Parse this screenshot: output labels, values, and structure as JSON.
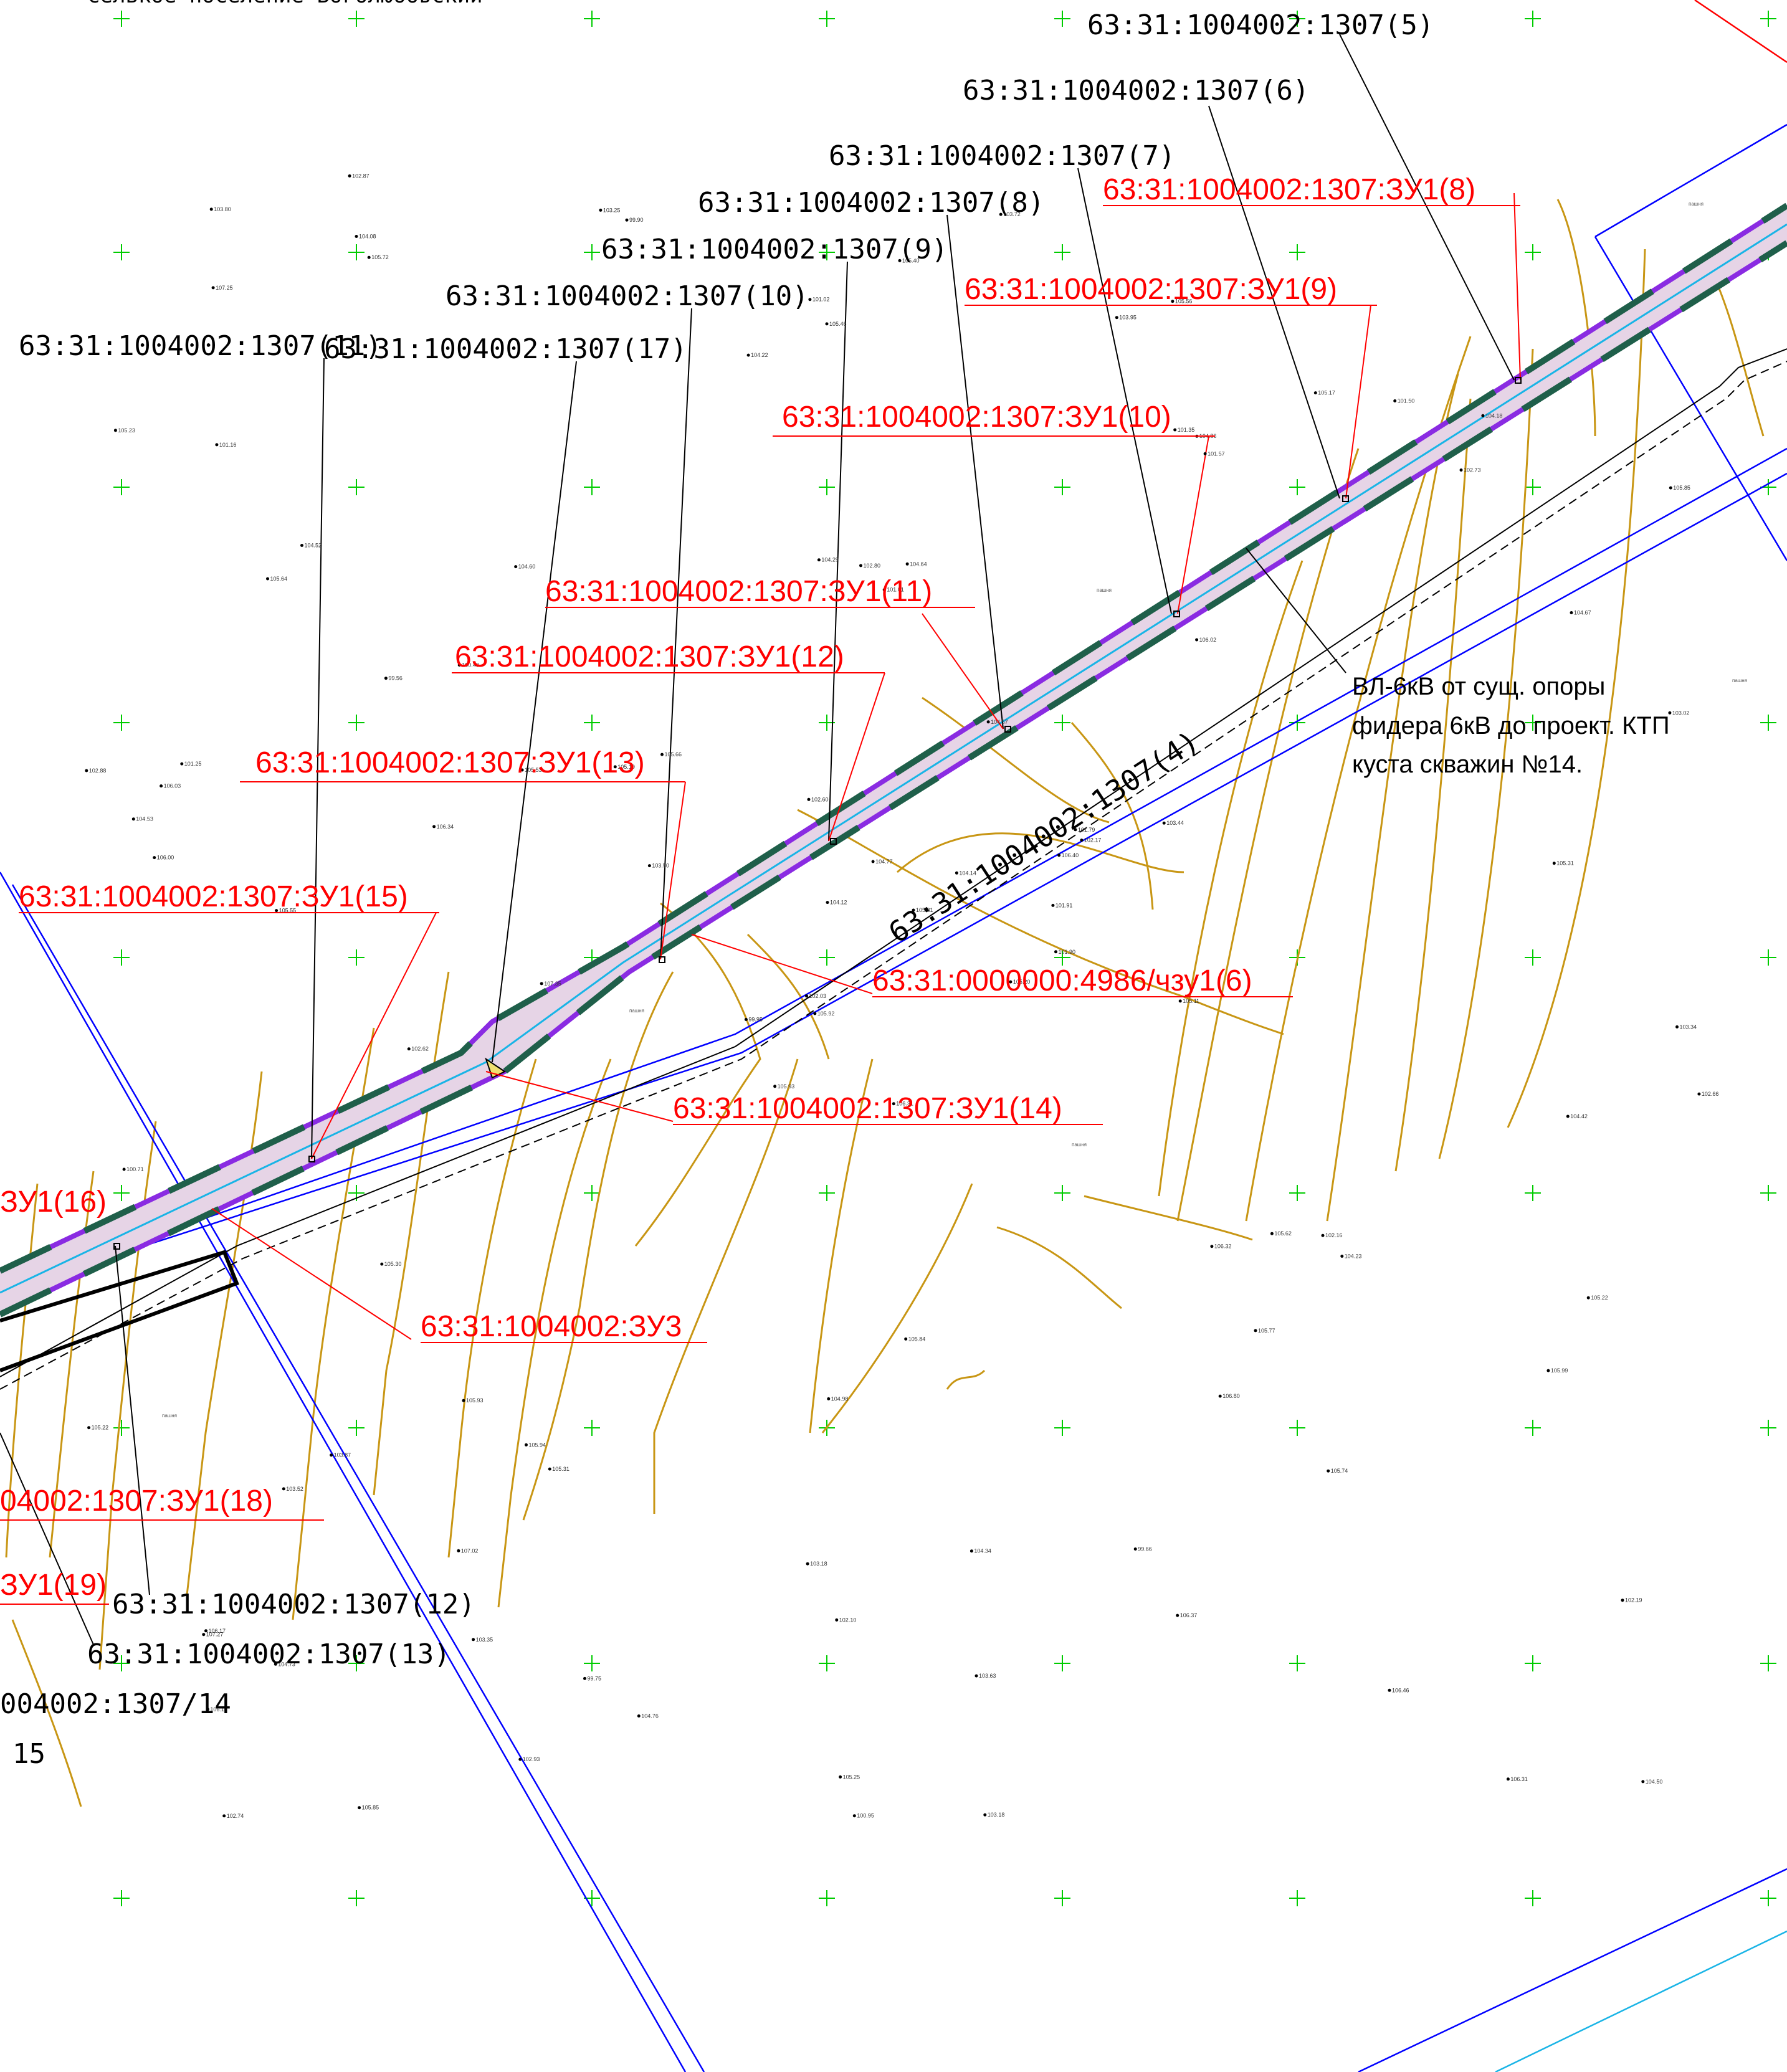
{
  "colors": {
    "background": "#ffffff",
    "corridor_fill": "#e6d4e6",
    "corridor_edge": "#8a2be2",
    "dash_segments": "#1f5f4a",
    "center_line": "#19b4e6",
    "contour": "#c89614",
    "boundary_blue": "#0000ff",
    "grid_cross": "#00cc00",
    "red_label": "#ff0000",
    "black_label": "#000000"
  },
  "header_clipped": "селькое поселение Боголюбовский",
  "black_labels": [
    {
      "id": "l5",
      "text": "63:31:1004002:1307(5)"
    },
    {
      "id": "l6",
      "text": "63:31:1004002:1307(6)"
    },
    {
      "id": "l7",
      "text": "63:31:1004002:1307(7)"
    },
    {
      "id": "l8",
      "text": "63:31:1004002:1307(8)"
    },
    {
      "id": "l9",
      "text": "63:31:1004002:1307(9)"
    },
    {
      "id": "l10",
      "text": "63:31:1004002:1307(10)"
    },
    {
      "id": "l11",
      "text": "63:31:1004002:1307(11)"
    },
    {
      "id": "l17",
      "text": "63:31:1004002:1307(17)"
    },
    {
      "id": "l12",
      "text": "63:31:1004002:1307(12)"
    },
    {
      "id": "l13",
      "text": "63:31:1004002:1307(13)"
    },
    {
      "id": "l14",
      "text": "004002:1307/14"
    },
    {
      "id": "l15",
      "text": "15"
    }
  ],
  "red_labels": [
    {
      "id": "r8",
      "text": "63:31:1004002:1307:ЗУ1(8)"
    },
    {
      "id": "r9",
      "text": "63:31:1004002:1307:ЗУ1(9)"
    },
    {
      "id": "r10",
      "text": "63:31:1004002:1307:ЗУ1(10)"
    },
    {
      "id": "r11",
      "text": "63:31:1004002:1307:ЗУ1(11)"
    },
    {
      "id": "r12",
      "text": "63:31:1004002:1307:ЗУ1(12)"
    },
    {
      "id": "r13",
      "text": "63:31:1004002:1307:ЗУ1(13)"
    },
    {
      "id": "r15",
      "text": "63:31:1004002:1307:ЗУ1(15)"
    },
    {
      "id": "r14",
      "text": "63:31:1004002:1307:ЗУ1(14)"
    },
    {
      "id": "rchz",
      "text": "63:31:0000000:4986/чзу1(6)"
    },
    {
      "id": "rzu3",
      "text": "63:31:1004002:ЗУ3"
    },
    {
      "id": "r16",
      "text": "ЗУ1(16)"
    },
    {
      "id": "r18",
      "text": "04002:1307:ЗУ1(18)"
    },
    {
      "id": "r19",
      "text": "ЗУ1(19)"
    }
  ],
  "road_label": "63:31:1004002:1307(4)",
  "note_lines": [
    "ВЛ-6кВ от сущ. опоры",
    "фидера 6кВ до проект. КТП",
    "куста скважин №14."
  ],
  "point_elevations": [
    "106.31",
    "105.64",
    "105.92",
    "106.17",
    "106.40",
    "105.31",
    "105.56",
    "104.64",
    "104.86",
    "105.20",
    "105.72",
    "104.50",
    "105.55",
    "105.85",
    "105.93",
    "106.02",
    "105.85",
    "104.29",
    "104.57",
    "103.87",
    "105.66",
    "106.15",
    "103.35",
    "102.80",
    "102.17",
    "104.23",
    "104.52",
    "105.46",
    "106.00",
    "106.32",
    "103.02",
    "102.03",
    "103.18",
    "104.12",
    "104.60",
    "105.17",
    "105.94",
    "106.31",
    "102.19",
    "102.16",
    "103.72",
    "105.10",
    "106.34",
    "106.80",
    "102.93",
    "102.88",
    "101.91",
    "102.74",
    "102.10",
    "101.90",
    "103.52",
    "104.67",
    "105.23",
    "105.77",
    "106.37",
    "107.02",
    "104.08",
    "103.80",
    "104.34",
    "104.18",
    "105.40",
    "107.35",
    "101.25",
    "100.40",
    "101.50",
    "102.87",
    "103.95",
    "104.22",
    "104.77",
    "105.22",
    "104.98",
    "104.76",
    "105.62",
    "105.53",
    "107.27",
    "107.25",
    "99.56",
    "100.71",
    "102.60",
    "103.63",
    "104.14",
    "104.73",
    "105.11",
    "105.22",
    "105.25",
    "105.31",
    "105.84",
    "106.46",
    "103.18",
    "99.66",
    "101.02",
    "102.66",
    "103.44",
    "105.74",
    "105.81",
    "105.99",
    "106.03",
    "100.95",
    "101.35",
    "101.57",
    "102.62",
    "103.25",
    "103.34",
    "104.53",
    "105.30",
    "105.93",
    "99.75",
    "101.79",
    "102.73",
    "103.50",
    "104.42",
    "101.16",
    "101.01",
    "99.95",
    "99.90"
  ],
  "point_notes": "пашня"
}
